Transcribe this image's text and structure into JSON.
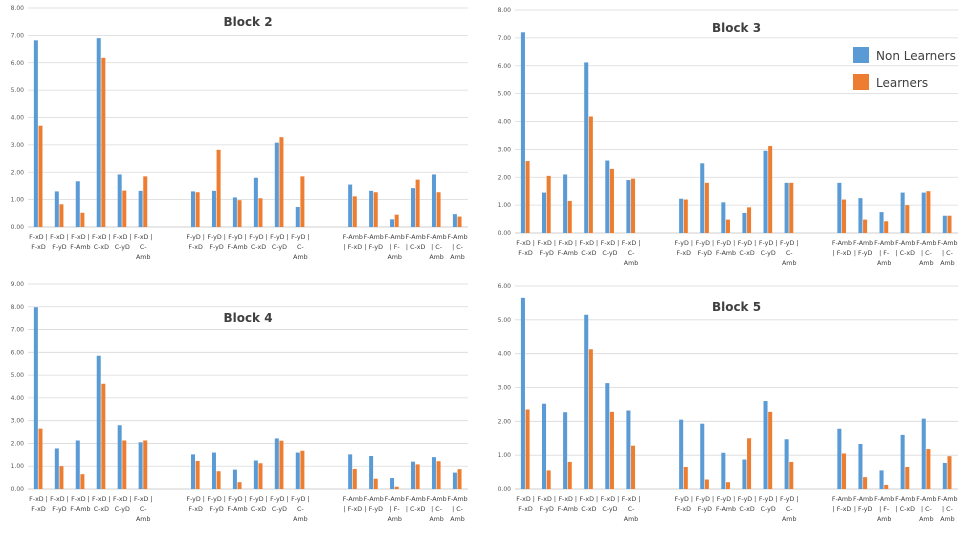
{
  "colors": {
    "non_learners": "#5b9bd5",
    "learners": "#ed7d31",
    "grid": "#d9d9d9",
    "axis": "#bfbfbf"
  },
  "legend": [
    {
      "label": "Non Learners",
      "color": "#5b9bd5"
    },
    {
      "label": "Learners",
      "color": "#ed7d31"
    }
  ],
  "chart_data": [
    {
      "type": "bar",
      "title": "Block 2",
      "ylim": [
        0,
        8
      ],
      "yticks": [
        "0.00",
        "1.00",
        "2.00",
        "3.00",
        "4.00",
        "5.00",
        "6.00",
        "7.00",
        "8.00"
      ],
      "categories": [
        [
          "F-xD |",
          "F-xD"
        ],
        [
          "F-xD |",
          "F-yD"
        ],
        [
          "F-xD |",
          "F-Amb"
        ],
        [
          "F-xD |",
          "C-xD"
        ],
        [
          "F-xD |",
          "C-yD"
        ],
        [
          "F-xD |",
          "C-",
          "Amb"
        ],
        [
          "F-yD |",
          "F-xD"
        ],
        [
          "F-yD |",
          "F-yD"
        ],
        [
          "F-yD |",
          "F-Amb"
        ],
        [
          "F-yD |",
          "C-xD"
        ],
        [
          "F-yD |",
          "C-yD"
        ],
        [
          "F-yD |",
          "C-",
          "Amb"
        ],
        [
          "F-Amb",
          "| F-xD"
        ],
        [
          "F-Amb",
          "| F-yD"
        ],
        [
          "F-Amb",
          "| F-",
          "Amb"
        ],
        [
          "F-Amb",
          "| C-xD"
        ],
        [
          "F-Amb",
          "| C-",
          "Amb"
        ],
        [
          "F-Amb",
          "| C-",
          "Amb"
        ]
      ],
      "series": [
        {
          "name": "Non Learners",
          "values": [
            6.82,
            1.3,
            1.67,
            6.9,
            1.92,
            1.32,
            1.3,
            1.32,
            1.08,
            1.8,
            3.08,
            0.73,
            1.55,
            1.32,
            0.28,
            1.42,
            1.92,
            0.47
          ]
        },
        {
          "name": "Learners",
          "values": [
            3.7,
            0.83,
            0.52,
            6.18,
            1.33,
            1.85,
            1.27,
            2.82,
            0.98,
            1.05,
            3.28,
            1.85,
            1.12,
            1.27,
            0.45,
            1.73,
            1.27,
            0.38
          ]
        }
      ]
    },
    {
      "type": "bar",
      "title": "Block 3",
      "ylim": [
        0,
        8
      ],
      "yticks": [
        "0.00",
        "1.00",
        "2.00",
        "3.00",
        "4.00",
        "5.00",
        "6.00",
        "7.00",
        "8.00"
      ],
      "categories": [
        [
          "F-xD |",
          "F-xD"
        ],
        [
          "F-xD |",
          "F-yD"
        ],
        [
          "F-xD |",
          "F-Amb"
        ],
        [
          "F-xD |",
          "C-xD"
        ],
        [
          "F-xD |",
          "C-yD"
        ],
        [
          "F-xD |",
          "C-",
          "Amb"
        ],
        [
          "F-yD |",
          "F-xD"
        ],
        [
          "F-yD |",
          "F-yD"
        ],
        [
          "F-yD |",
          "F-Amb"
        ],
        [
          "F-yD |",
          "C-xD"
        ],
        [
          "F-yD |",
          "C-yD"
        ],
        [
          "F-yD |",
          "C-",
          "Amb"
        ],
        [
          "F-Amb",
          "| F-xD"
        ],
        [
          "F-Amb",
          "| F-yD"
        ],
        [
          "F-Amb",
          "| F-",
          "Amb"
        ],
        [
          "F-Amb",
          "| C-xD"
        ],
        [
          "F-Amb",
          "| C-",
          "Amb"
        ],
        [
          "F-Amb",
          "| C-",
          "Amb"
        ]
      ],
      "series": [
        {
          "name": "Non Learners",
          "values": [
            7.2,
            1.45,
            2.1,
            6.12,
            2.6,
            1.9,
            1.23,
            2.5,
            1.1,
            0.72,
            2.95,
            1.8,
            1.8,
            1.25,
            0.75,
            1.45,
            1.45,
            0.62
          ]
        },
        {
          "name": "Learners",
          "values": [
            2.58,
            2.05,
            1.15,
            4.18,
            2.3,
            1.95,
            1.2,
            1.8,
            0.48,
            0.92,
            3.12,
            1.8,
            1.2,
            0.48,
            0.42,
            1.0,
            1.5,
            0.62
          ]
        }
      ]
    },
    {
      "type": "bar",
      "title": "Block 4",
      "ylim": [
        0,
        9
      ],
      "yticks": [
        "0.00",
        "1.00",
        "2.00",
        "3.00",
        "4.00",
        "5.00",
        "6.00",
        "7.00",
        "8.00",
        "9.00"
      ],
      "categories": [
        [
          "F-xD |",
          "F-xD"
        ],
        [
          "F-xD |",
          "F-yD"
        ],
        [
          "F-xD |",
          "F-Amb"
        ],
        [
          "F-xD |",
          "C-xD"
        ],
        [
          "F-xD |",
          "C-yD"
        ],
        [
          "F-xD |",
          "C-",
          "Amb"
        ],
        [
          "F-yD |",
          "F-xD"
        ],
        [
          "F-yD |",
          "F-yD"
        ],
        [
          "F-yD |",
          "F-Amb"
        ],
        [
          "F-yD |",
          "C-xD"
        ],
        [
          "F-yD |",
          "C-yD"
        ],
        [
          "F-yD |",
          "C-",
          "Amb"
        ],
        [
          "F-Amb",
          "| F-xD"
        ],
        [
          "F-Amb",
          "| F-yD"
        ],
        [
          "F-Amb",
          "| F-",
          "Amb"
        ],
        [
          "F-Amb",
          "| C-xD"
        ],
        [
          "F-Amb",
          "| C-",
          "Amb"
        ],
        [
          "F-Amb",
          "| C-",
          "Amb"
        ]
      ],
      "series": [
        {
          "name": "Non Learners",
          "values": [
            7.98,
            1.78,
            2.13,
            5.85,
            2.8,
            2.05,
            1.52,
            1.6,
            0.85,
            1.25,
            2.22,
            1.6,
            1.52,
            1.45,
            0.48,
            1.2,
            1.4,
            0.72
          ]
        },
        {
          "name": "Learners",
          "values": [
            2.65,
            1.0,
            0.65,
            4.62,
            2.13,
            2.13,
            1.23,
            0.78,
            0.3,
            1.13,
            2.12,
            1.68,
            0.88,
            0.45,
            0.1,
            1.08,
            1.22,
            0.87
          ]
        }
      ]
    },
    {
      "type": "bar",
      "title": "Block 5",
      "ylim": [
        0,
        6
      ],
      "yticks": [
        "0.00",
        "1.00",
        "2.00",
        "3.00",
        "4.00",
        "5.00",
        "6.00"
      ],
      "categories": [
        [
          "F-xD |",
          "F-xD"
        ],
        [
          "F-xD |",
          "F-yD"
        ],
        [
          "F-xD |",
          "F-Amb"
        ],
        [
          "F-xD |",
          "C-xD"
        ],
        [
          "F-xD |",
          "C-yD"
        ],
        [
          "F-xD |",
          "C-",
          "Amb"
        ],
        [
          "F-yD |",
          "F-xD"
        ],
        [
          "F-yD |",
          "F-yD"
        ],
        [
          "F-yD |",
          "F-Amb"
        ],
        [
          "F-yD |",
          "C-xD"
        ],
        [
          "F-yD |",
          "C-yD"
        ],
        [
          "F-yD |",
          "C-",
          "Amb"
        ],
        [
          "F-Amb",
          "| F-xD"
        ],
        [
          "F-Amb",
          "| F-yD"
        ],
        [
          "F-Amb",
          "| F-",
          "Amb"
        ],
        [
          "F-Amb",
          "| C-xD"
        ],
        [
          "F-Amb",
          "| C-",
          "Amb"
        ],
        [
          "F-Amb",
          "| C-",
          "Amb"
        ]
      ],
      "series": [
        {
          "name": "Non Learners",
          "values": [
            5.65,
            2.52,
            2.27,
            5.15,
            3.13,
            2.32,
            2.05,
            1.93,
            1.07,
            0.87,
            2.6,
            1.47,
            1.78,
            1.33,
            0.55,
            1.6,
            2.08,
            0.77
          ]
        },
        {
          "name": "Learners",
          "values": [
            2.35,
            0.55,
            0.8,
            4.13,
            2.28,
            1.28,
            0.65,
            0.28,
            0.2,
            1.5,
            2.28,
            0.8,
            1.05,
            0.35,
            0.12,
            0.65,
            1.18,
            0.97
          ]
        }
      ]
    }
  ]
}
